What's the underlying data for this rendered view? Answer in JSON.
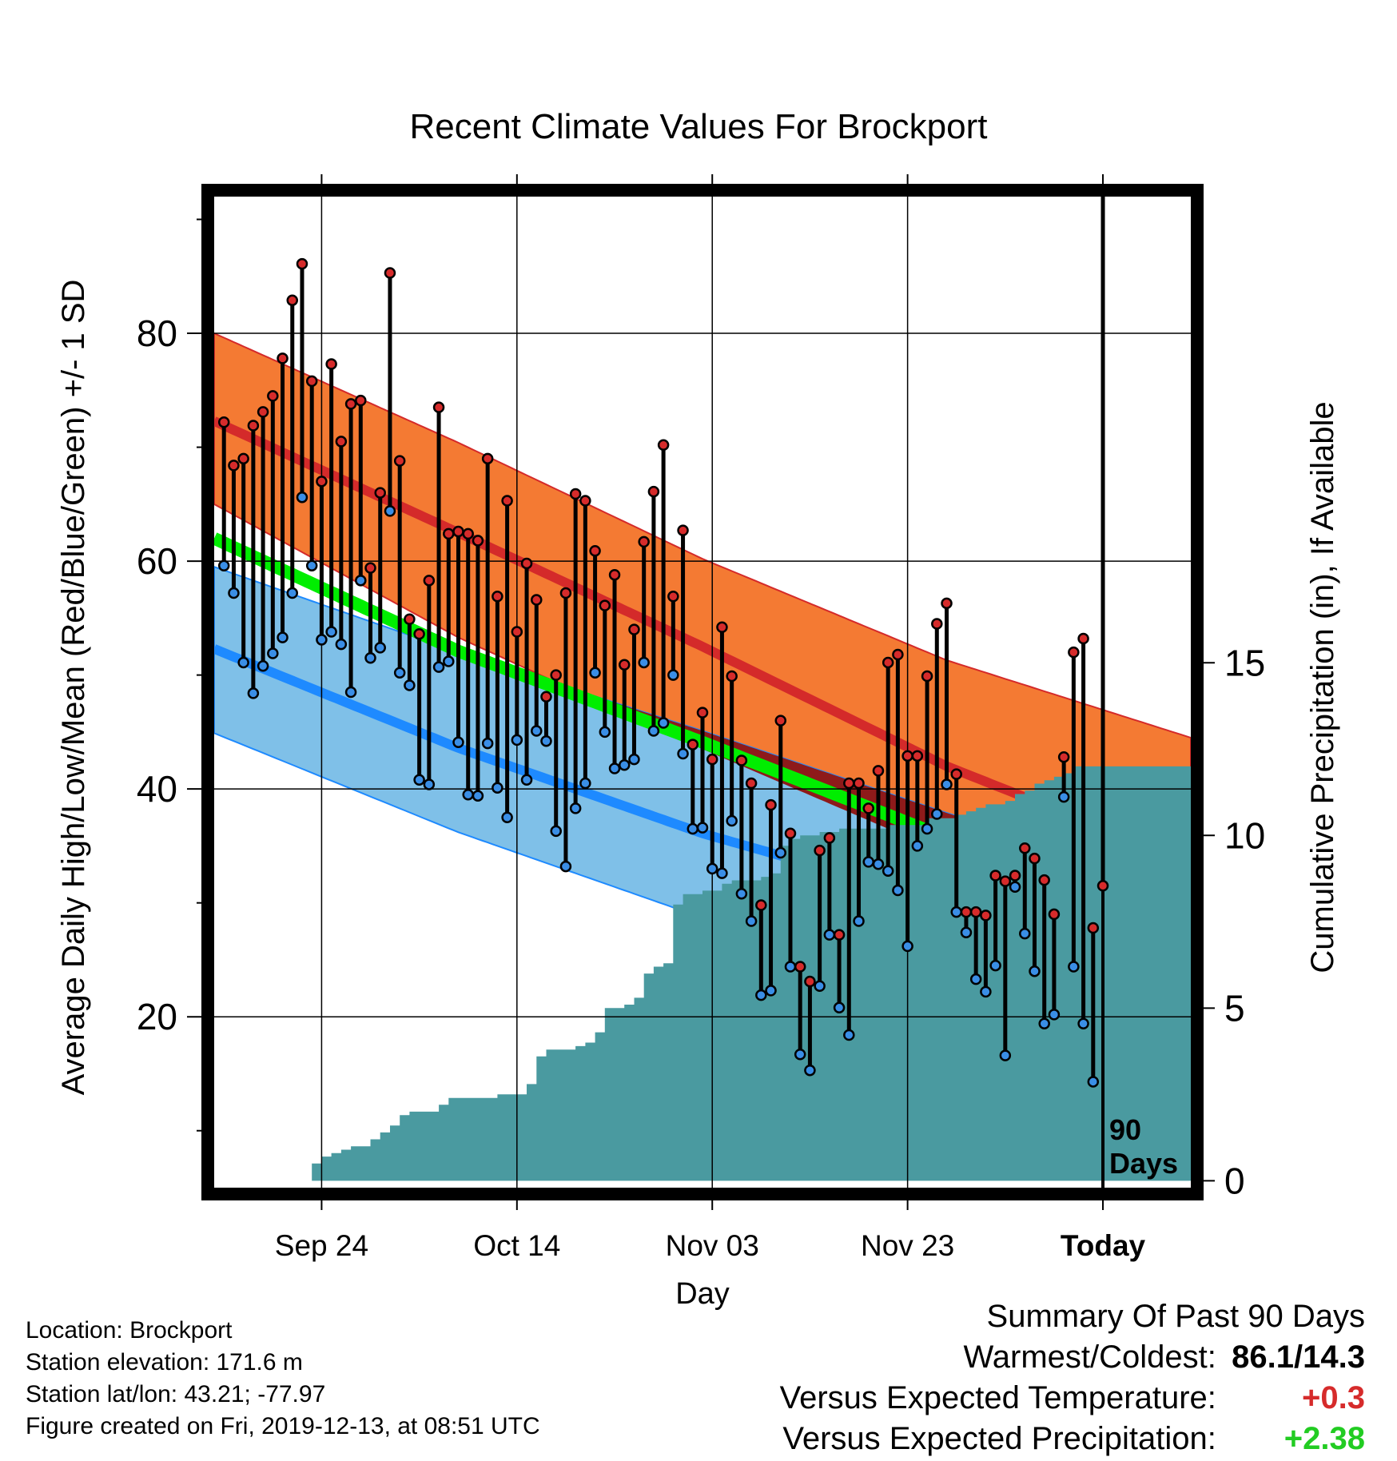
{
  "chart_data": {
    "type": "line",
    "title": "Recent Climate Values For Brockport",
    "xlabel": "Day",
    "ylabel_left": "Average Daily High/Low/Mean (Red/Blue/Green) +/- 1 SD",
    "ylabel_right": "Cumulative Precipitation (in), If Available",
    "x_ticks": [
      {
        "day": 10,
        "label": "Sep 24"
      },
      {
        "day": 30,
        "label": "Oct 14"
      },
      {
        "day": 50,
        "label": "Nov 03"
      },
      {
        "day": 70,
        "label": "Nov 23"
      },
      {
        "day": 90,
        "label": "Today"
      }
    ],
    "xlim": [
      -1,
      99
    ],
    "ylim_left": [
      5,
      92
    ],
    "y_ticks_left": [
      20,
      40,
      60,
      80
    ],
    "ylim_right": [
      -0.2,
      28.5
    ],
    "y_ticks_right": [
      0,
      5,
      10,
      15
    ],
    "today_marker_label": "90\nDays",
    "normals": {
      "x": [
        -1,
        24,
        49,
        74,
        99
      ],
      "high_mean": [
        72.3,
        62.5,
        52.5,
        42.0,
        33.5
      ],
      "high_sd_upper": [
        80.0,
        70.4,
        60.2,
        51.3,
        44.5
      ],
      "high_sd_lower": [
        65.0,
        53.3,
        43.5,
        34.3,
        26.0
      ],
      "low_mean": [
        52.3,
        43.6,
        36.1,
        30.0,
        23.5
      ],
      "low_sd_upper": [
        59.5,
        52.0,
        45.1,
        37.9,
        31.0
      ],
      "low_sd_lower": [
        44.9,
        36.2,
        28.7,
        21.5,
        15.2
      ],
      "mean_mid": [
        62.0,
        52.1,
        44.1,
        35.7,
        26.8
      ]
    },
    "series": [
      {
        "name": "High",
        "color": "#d62b2b",
        "values": [
          72.2,
          68.4,
          69.0,
          71.9,
          73.1,
          74.5,
          77.8,
          82.9,
          86.1,
          75.8,
          67.0,
          77.3,
          70.5,
          73.8,
          74.1,
          59.4,
          66.0,
          85.3,
          68.8,
          54.9,
          53.6,
          58.3,
          73.5,
          62.4,
          62.6,
          62.4,
          61.8,
          69.0,
          56.9,
          65.3,
          53.8,
          59.8,
          56.6,
          48.1,
          50.0,
          57.2,
          65.9,
          65.3,
          60.9,
          56.1,
          58.8,
          50.9,
          54.0,
          61.7,
          66.1,
          70.2,
          56.9,
          62.7,
          43.9,
          46.7,
          42.6,
          54.2,
          49.9,
          42.5,
          40.5,
          29.8,
          38.6,
          46.0,
          36.1,
          24.4,
          23.1,
          34.6,
          35.7,
          27.2,
          40.5,
          40.5,
          38.3,
          41.6,
          51.1,
          51.8,
          42.9,
          42.9,
          49.9,
          54.5,
          56.3,
          41.3,
          29.2,
          29.2,
          28.9,
          32.4,
          31.9,
          32.4,
          34.8,
          33.9,
          32.0,
          29.0,
          42.8,
          52.0,
          53.2,
          27.8,
          31.5
        ]
      },
      {
        "name": "Low",
        "color": "#3a8ee6",
        "values": [
          59.6,
          57.2,
          51.1,
          48.4,
          50.8,
          51.9,
          53.3,
          57.2,
          65.6,
          59.6,
          53.1,
          53.8,
          52.7,
          48.5,
          58.3,
          51.5,
          52.4,
          64.4,
          50.2,
          49.1,
          40.8,
          40.4,
          50.7,
          51.2,
          44.1,
          39.5,
          39.4,
          44.0,
          40.1,
          37.5,
          44.3,
          40.8,
          45.1,
          44.2,
          36.3,
          33.2,
          38.3,
          40.5,
          50.2,
          45.0,
          41.8,
          42.1,
          42.6,
          51.1,
          45.1,
          45.8,
          50.0,
          43.1,
          36.5,
          36.6,
          33.0,
          32.6,
          37.2,
          30.8,
          28.4,
          21.9,
          22.3,
          34.4,
          24.4,
          16.7,
          15.3,
          22.7,
          27.2,
          20.8,
          18.4,
          28.4,
          33.6,
          33.4,
          32.8,
          31.1,
          26.2,
          35.0,
          36.5,
          37.8,
          40.4,
          29.2,
          27.4,
          23.3,
          22.2,
          24.5,
          16.6,
          31.4,
          27.3,
          24.0,
          19.4,
          20.2,
          39.3,
          24.4,
          19.4,
          14.3
        ]
      }
    ],
    "precip_cumulative": {
      "x": [
        -1,
        8,
        9,
        10,
        11,
        12,
        13,
        14,
        15,
        16,
        17,
        18,
        19,
        20,
        21,
        22,
        23,
        24,
        25,
        26,
        27,
        28,
        29,
        30,
        31,
        32,
        33,
        34,
        35,
        36,
        37,
        38,
        39,
        40,
        41,
        42,
        43,
        44,
        45,
        46,
        47,
        48,
        49,
        50,
        51,
        52,
        53,
        54,
        55,
        56,
        57,
        58,
        59,
        60,
        61,
        62,
        63,
        64,
        65,
        66,
        67,
        68,
        69,
        70,
        71,
        72,
        73,
        74,
        75,
        76,
        77,
        78,
        79,
        80,
        81,
        82,
        83,
        84,
        85,
        86,
        87,
        88,
        89,
        90,
        91,
        92,
        99
      ],
      "values": [
        0,
        0,
        0.5,
        0.7,
        0.8,
        0.9,
        1.0,
        1.0,
        1.2,
        1.4,
        1.6,
        1.9,
        2.0,
        2.0,
        2.0,
        2.2,
        2.4,
        2.4,
        2.4,
        2.4,
        2.4,
        2.5,
        2.5,
        2.5,
        2.8,
        3.6,
        3.8,
        3.8,
        3.8,
        3.9,
        4.0,
        4.3,
        5.0,
        5.0,
        5.1,
        5.3,
        6.0,
        6.2,
        6.3,
        8.0,
        8.3,
        8.3,
        8.4,
        8.4,
        8.6,
        8.7,
        8.7,
        8.7,
        8.8,
        8.9,
        9.7,
        9.9,
        10.0,
        10.0,
        10.1,
        10.1,
        10.2,
        10.2,
        10.2,
        10.2,
        10.2,
        10.3,
        10.3,
        10.3,
        10.3,
        10.5,
        10.5,
        10.5,
        10.6,
        10.7,
        10.8,
        10.9,
        10.9,
        11.0,
        11.2,
        11.3,
        11.5,
        11.6,
        11.7,
        11.8,
        12.0,
        12.0,
        12.0,
        12.0,
        12.0,
        12.0,
        12.0
      ]
    },
    "colors": {
      "high_band": "#f47a33",
      "high_line": "#d42a2a",
      "band_overlap": "#8e1a1a",
      "low_band": "#7fc0e8",
      "low_line": "#1e8aff",
      "mean_line": "#00ee00",
      "precip_fill": "#4a9aa0"
    },
    "grid": true
  },
  "footer": {
    "location": "Location: Brockport",
    "elevation": "Station elevation: 171.6 m",
    "latlon": "Station lat/lon: 43.21; -77.97",
    "created": "Figure created on Fri, 2019-12-13, at 08:51 UTC"
  },
  "summary": {
    "heading": "Summary Of Past 90 Days",
    "warmest_coldest_label": "Warmest/Coldest:",
    "warmest_coldest_value": "86.1/14.3",
    "temp_label": "Versus Expected Temperature:",
    "temp_value": "+0.3",
    "precip_label": "Versus Expected Precipitation:",
    "precip_value": "+2.38"
  }
}
